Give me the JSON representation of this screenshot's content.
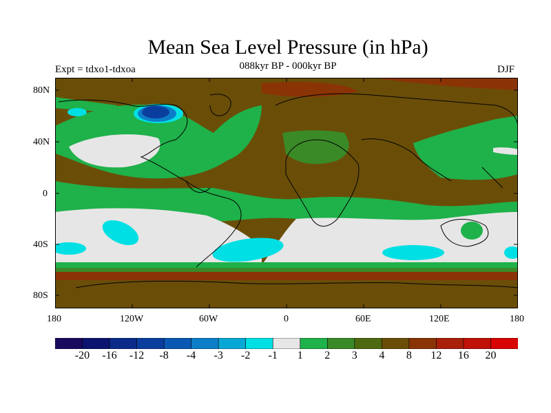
{
  "title": "Mean Sea Level Pressure (in hPa)",
  "subtitle": "088kyr BP - 000kyr BP",
  "experiment": "Expt = tdxo1-tdxoa",
  "season": "DJF",
  "axes": {
    "y_ticks": [
      "80N",
      "40N",
      "0",
      "40S",
      "80S"
    ],
    "x_ticks": [
      "180",
      "120W",
      "60W",
      "0",
      "60E",
      "120E",
      "180"
    ]
  },
  "colorbar": {
    "labels": [
      "-20",
      "-16",
      "-12",
      "-8",
      "-4",
      "-3",
      "-2",
      "-1",
      "1",
      "2",
      "3",
      "4",
      "8",
      "12",
      "16",
      "20"
    ],
    "colors": [
      "#1a0a5e",
      "#0c1470",
      "#0b2a8a",
      "#0a3e9e",
      "#0a58b4",
      "#0c7ec8",
      "#08a8d6",
      "#00e0e4",
      "#e6e6e6",
      "#1fb14a",
      "#3a8a28",
      "#4e6a10",
      "#6a4e08",
      "#8a3406",
      "#a8200a",
      "#c01208",
      "#d80404"
    ]
  }
}
